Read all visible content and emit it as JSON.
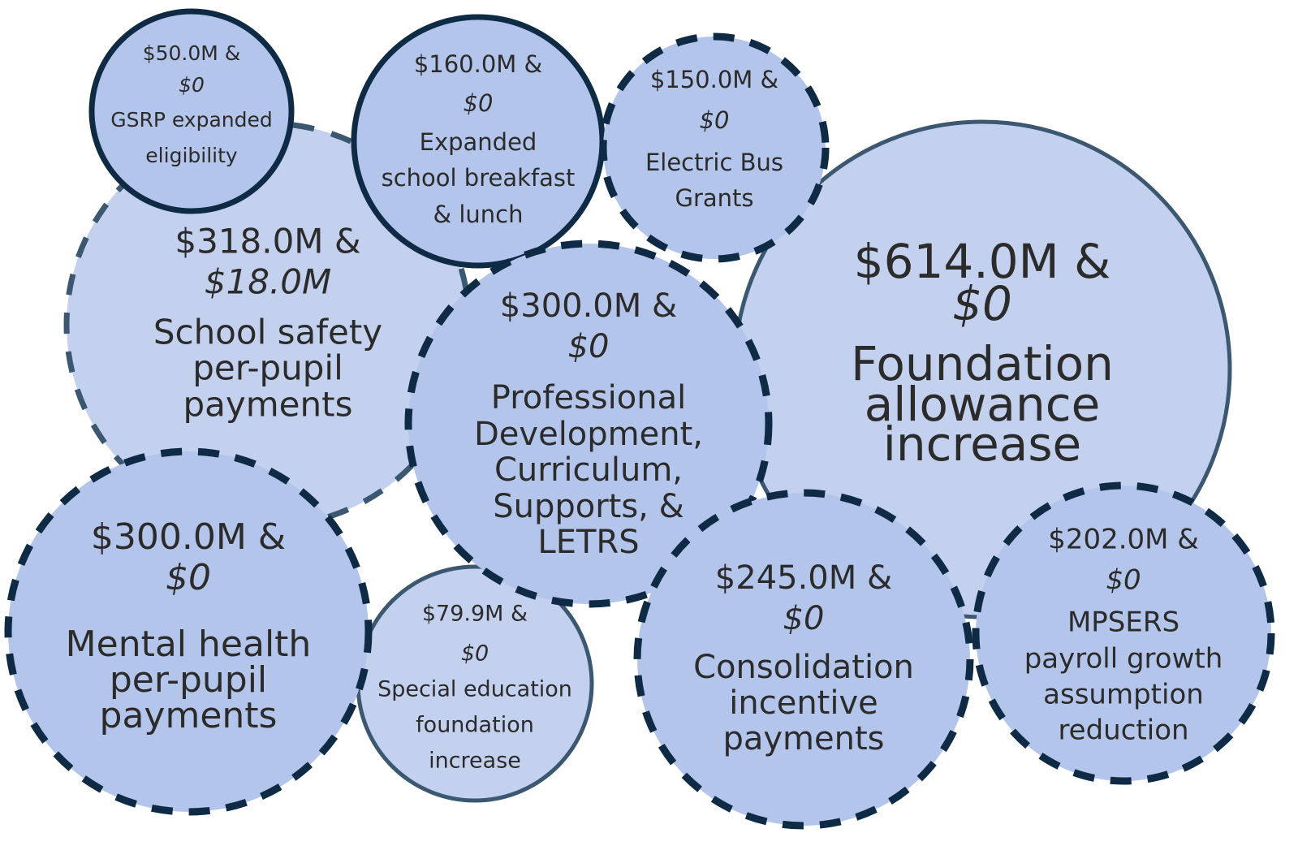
{
  "bubbles": [
    {
      "amount": "$318.0M &",
      "second": "$18.0M",
      "label": [
        "School safety",
        "per-pupil",
        "payments"
      ]
    },
    {
      "amount": "$614.0M &",
      "second": "$0",
      "label": [
        "Foundation",
        "allowance",
        "increase"
      ]
    },
    {
      "amount": "$50.0M &",
      "second": "$0",
      "label": [
        "GSRP expanded",
        "eligibility"
      ]
    },
    {
      "amount": "$160.0M &",
      "second": "$0",
      "label": [
        "Expanded",
        "school breakfast",
        "& lunch"
      ]
    },
    {
      "amount": "$150.0M &",
      "second": "$0",
      "label": [
        "Electric Bus",
        "Grants"
      ]
    },
    {
      "amount": "$79.9M &",
      "second": "$0",
      "label": [
        "Special education",
        "foundation",
        "increase"
      ]
    },
    {
      "amount": "$300.0M &",
      "second": "$0",
      "label": [
        "Professional",
        "Development,",
        "Curriculum,",
        "Supports, &",
        "LETRS"
      ]
    },
    {
      "amount": "$300.0M &",
      "second": "$0",
      "label": [
        "Mental health",
        "per-pupil",
        "payments"
      ]
    },
    {
      "amount": "$245.0M &",
      "second": "$0",
      "label": [
        "Consolidation",
        "incentive",
        "payments"
      ]
    },
    {
      "amount": "$202.0M &",
      "second": "$0",
      "label": [
        "MPSERS",
        "payroll growth",
        "assumption",
        "reduction"
      ]
    }
  ]
}
